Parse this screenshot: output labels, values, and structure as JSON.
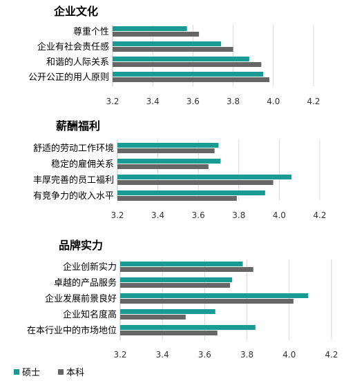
{
  "chart_data": [
    {
      "type": "bar",
      "orientation": "horizontal",
      "title": "企业文化",
      "categories": [
        "尊重个性",
        "企业有社会责任感",
        "和谐的人际关系",
        "公开公正的用人原则"
      ],
      "series": [
        {
          "name": "硕士",
          "values": [
            3.57,
            3.74,
            3.88,
            3.95
          ]
        },
        {
          "name": "本科",
          "values": [
            3.63,
            3.8,
            3.94,
            3.98
          ]
        }
      ],
      "xlim": [
        3.2,
        4.2
      ],
      "xticks": [
        "3.2",
        "3.4",
        "3.6",
        "3.8",
        "4.0",
        "4.2"
      ],
      "grid": true
    },
    {
      "type": "bar",
      "orientation": "horizontal",
      "title": "薪酬福利",
      "categories": [
        "舒适的劳动工作环境",
        "稳定的雇佣关系",
        "丰厚完善的员工福利",
        "有竞争力的收入水平"
      ],
      "series": [
        {
          "name": "硕士",
          "values": [
            3.7,
            3.71,
            4.06,
            3.93
          ]
        },
        {
          "name": "本科",
          "values": [
            3.68,
            3.65,
            3.97,
            3.79
          ]
        }
      ],
      "xlim": [
        3.2,
        4.2
      ],
      "xticks": [
        "3.2",
        "3.4",
        "3.6",
        "3.8",
        "4.0",
        "4.2"
      ],
      "grid": true
    },
    {
      "type": "bar",
      "orientation": "horizontal",
      "title": "品牌实力",
      "categories": [
        "企业创新实力",
        "卓越的产品服务",
        "企业发展前景良好",
        "企业知名度高",
        "在本行业中的市场地位"
      ],
      "series": [
        {
          "name": "硕士",
          "values": [
            3.78,
            3.73,
            4.09,
            3.65,
            3.84
          ]
        },
        {
          "name": "本科",
          "values": [
            3.83,
            3.72,
            4.02,
            3.51,
            3.66
          ]
        }
      ],
      "xlim": [
        3.2,
        4.2
      ],
      "xticks": [
        "3.2",
        "3.4",
        "3.6",
        "3.8",
        "4.0",
        "4.2"
      ],
      "grid": true
    }
  ],
  "legend": {
    "items": [
      {
        "label": "硕士",
        "color": "#1a9a94"
      },
      {
        "label": "本科",
        "color": "#666666"
      }
    ],
    "placement": "bottom-left"
  },
  "colors": {
    "series1": "#1a9a94",
    "series2": "#666666",
    "grid": "#d9d9d9"
  }
}
